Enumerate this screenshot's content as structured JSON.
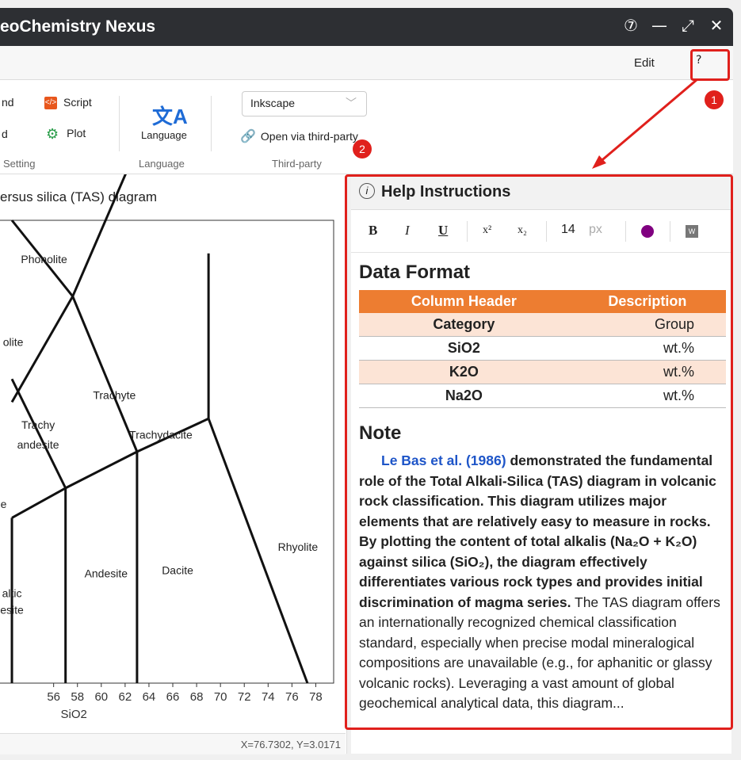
{
  "window": {
    "title": "eoChemistry Nexus",
    "controls": {
      "help": "⑦",
      "minimize": "—",
      "maximize": "⤢",
      "close": "✕"
    }
  },
  "menu": {
    "edit": "Edit",
    "help": "?"
  },
  "ribbon": {
    "item_nd": "nd",
    "item_d": "d",
    "script": "Script",
    "plot": "Plot",
    "language": "Language",
    "group_setting": "Setting",
    "group_language": "Language",
    "group_third_party": "Third-party",
    "third_party_select": "Inkscape",
    "open_third_party": "Open via third-party"
  },
  "chart_data": {
    "type": "scatter",
    "title": "ersus silica (TAS) diagram",
    "xlabel": "SiO2",
    "ylabel": "",
    "xlim": [
      51.5,
      79.5
    ],
    "ylim": [
      0,
      14
    ],
    "xticks": [
      "56",
      "58",
      "60",
      "62",
      "64",
      "66",
      "68",
      "70",
      "72",
      "74",
      "76",
      "78"
    ],
    "fields": [
      "Phonolite",
      "olite",
      "Trachyte",
      "Trachy",
      "andesite",
      "Trachydacite",
      "e",
      "Rhyolite",
      "Andesite",
      "Dacite",
      "altic",
      "esite"
    ],
    "boundaries": [
      [
        [
          57.6,
          11.7
        ],
        [
          63.0,
          16.2
        ]
      ],
      [
        [
          52.5,
          14.0
        ],
        [
          57.6,
          11.7
        ]
      ],
      [
        [
          52.5,
          8.5
        ],
        [
          57.6,
          11.7
        ]
      ],
      [
        [
          57.6,
          11.7
        ],
        [
          63.0,
          7.0
        ]
      ],
      [
        [
          52.5,
          5.0
        ],
        [
          57.0,
          5.9
        ]
      ],
      [
        [
          57.0,
          5.9
        ],
        [
          52.5,
          9.2
        ]
      ],
      [
        [
          57.0,
          5.9
        ],
        [
          63.0,
          7.0
        ]
      ],
      [
        [
          63.0,
          7.0
        ],
        [
          69.0,
          8.0
        ]
      ],
      [
        [
          69.0,
          8.0
        ],
        [
          69.0,
          13.0
        ]
      ],
      [
        [
          69.0,
          8.0
        ],
        [
          77.3,
          0.0
        ]
      ],
      [
        [
          57.0,
          5.9
        ],
        [
          57.0,
          0.0
        ]
      ],
      [
        [
          63.0,
          7.0
        ],
        [
          63.0,
          0.0
        ]
      ],
      [
        [
          52.5,
          5.0
        ],
        [
          52.5,
          0.0
        ]
      ]
    ]
  },
  "status": {
    "coords": "X=76.7302, Y=3.0171"
  },
  "help": {
    "header": "Help Instructions",
    "toolbar": {
      "bold": "B",
      "italic": "I",
      "underline": "U",
      "sup": "x²",
      "sub": "x₂",
      "font_size": "14",
      "unit": "px"
    },
    "data_format_title": "Data Format",
    "table": {
      "headers": [
        "Column Header",
        "Description"
      ],
      "rows": [
        [
          "Category",
          "Group"
        ],
        [
          "SiO2",
          "wt.%"
        ],
        [
          "K2O",
          "wt.%"
        ],
        [
          "Na2O",
          "wt.%"
        ]
      ]
    },
    "note_title": "Note",
    "note_cite": "Le Bas et al. (1986)",
    "note_bold": " demonstrated the fundamental role of the Total Alkali-Silica (TAS) diagram in volcanic rock classification. This diagram utilizes major elements that are relatively easy to measure in rocks. By plotting the content of total alkalis (Na₂O + K₂O) against silica (SiO₂), the diagram effectively differentiates various rock types and provides initial discrimination of magma series.",
    "note_plain": " The TAS diagram offers an internationally recognized chemical classification standard, especially when precise modal mineralogical compositions are unavailable (e.g., for aphanitic or glassy volcanic rocks). Leveraging a vast amount of global geochemical analytical data, this diagram..."
  },
  "annotations": {
    "badge1": "1",
    "badge2": "2"
  },
  "colors": {
    "accent": "#e0201c",
    "table_header": "#ed7d31",
    "table_odd": "#fce4d6",
    "link": "#1e55c8"
  }
}
